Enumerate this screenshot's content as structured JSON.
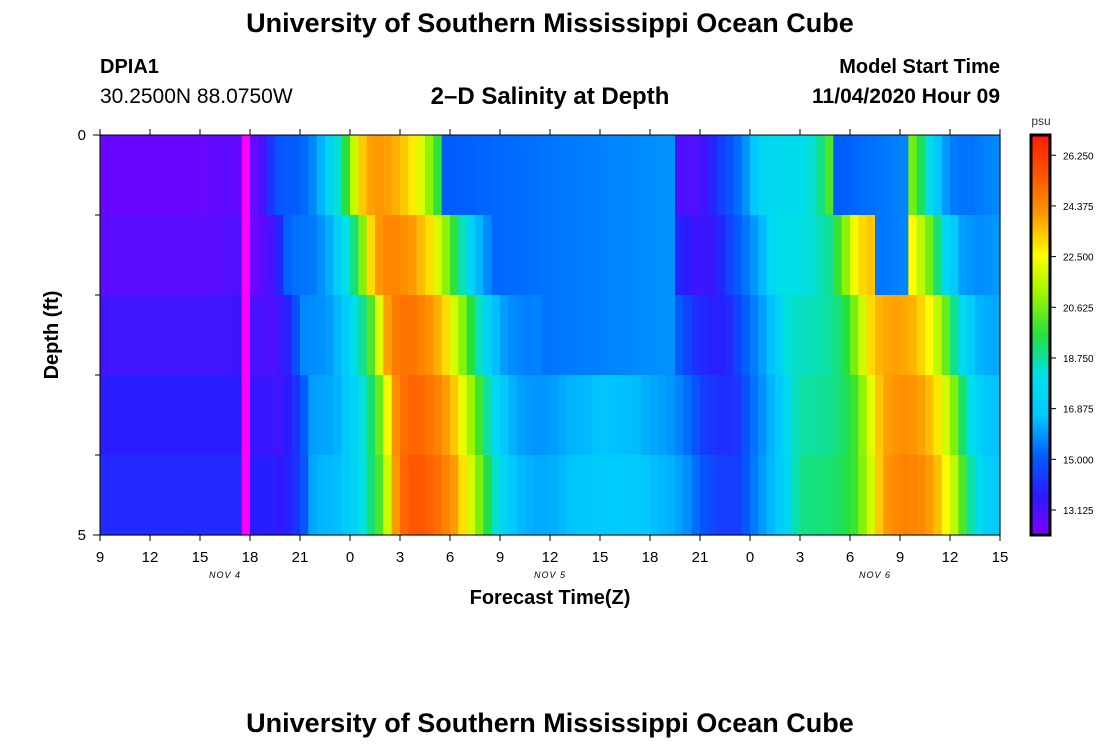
{
  "header": {
    "title": "University of Southern Mississippi Ocean Cube",
    "station_id": "DPIA1",
    "coordinates": "30.2500N 88.0750W",
    "chart_title": "2–D Salinity at Depth",
    "model_start_label": "Model Start Time",
    "model_start_value": "11/04/2020 Hour 09"
  },
  "footer": {
    "title": "University of Southern Mississippi Ocean Cube"
  },
  "colors": {
    "scale": [
      "#7f00ff",
      "#2a1bff",
      "#0060ff",
      "#00c8ff",
      "#00e0e8",
      "#22e040",
      "#9af500",
      "#ffff00",
      "#ff9a00",
      "#ff5500",
      "#ff1a00"
    ],
    "highlight": "#ff00ff"
  },
  "chart_data": {
    "type": "heatmap",
    "title": "2–D Salinity at Depth",
    "xlabel": "Forecast Time(Z)",
    "ylabel": "Depth (ft)",
    "units": "psu",
    "x_ticks": [
      "9",
      "12",
      "15",
      "18",
      "21",
      "0",
      "3",
      "6",
      "9",
      "12",
      "15",
      "18",
      "21",
      "0",
      "3",
      "6",
      "9",
      "12",
      "15"
    ],
    "x_hour_range": [
      0,
      54
    ],
    "date_labels": [
      {
        "label": "NOV 4",
        "hour": 7.5
      },
      {
        "label": "NOV 5",
        "hour": 27
      },
      {
        "label": "NOV 6",
        "hour": 46.5
      }
    ],
    "y_range": [
      0,
      5
    ],
    "y_tick_labels": [
      {
        "depth": 0,
        "label": "0"
      },
      {
        "depth": 5,
        "label": "5"
      }
    ],
    "y_minor_ticks": [
      1,
      2,
      3,
      4
    ],
    "colorbar": {
      "label": "psu",
      "min": 12.2,
      "max": 27.0,
      "ticks": [
        "13.125",
        "15.000",
        "16.875",
        "18.750",
        "20.625",
        "22.500",
        "24.375",
        "26.250"
      ]
    },
    "n_depth_layers": 5,
    "profile_hours": [
      0,
      3,
      6,
      8,
      8.5,
      9.5,
      10,
      10.5,
      11,
      12,
      13,
      14,
      14.5,
      15,
      15.5,
      16,
      16.5,
      17,
      18,
      19,
      20,
      21,
      21.5,
      22,
      22.5,
      23,
      24,
      25,
      26,
      28,
      30,
      31,
      32,
      33,
      34,
      35,
      36,
      37,
      38,
      39,
      39.5,
      40,
      41,
      42,
      43,
      44,
      44.5,
      45,
      46,
      47,
      48,
      49,
      50,
      51,
      52,
      54
    ],
    "profile_values": [
      12.6,
      12.6,
      12.6,
      12.8,
      12.5,
      13.2,
      14.0,
      15.3,
      15.4,
      15.5,
      16.3,
      18.2,
      19.2,
      21.0,
      23.3,
      24.2,
      24.5,
      24.5,
      24.0,
      23.0,
      20.8,
      18.4,
      17.2,
      16.3,
      15.7,
      15.4,
      15.2,
      15.3,
      15.6,
      15.9,
      15.8,
      15.5,
      15.3,
      14.8,
      13.8,
      13.4,
      13.4,
      14.6,
      15.5,
      16.5,
      17.7,
      18.0,
      18.1,
      18.3,
      18.9,
      21.0,
      22.5,
      23.2,
      23.6,
      23.4,
      22.5,
      20.5,
      17.5,
      16.0,
      15.8,
      16.2
    ],
    "fresh_band": {
      "start_hour": 8.5,
      "end_hour": 9.0,
      "value": 11.5
    },
    "depth_lag_hours": [
      0,
      0.8,
      1.6,
      2.1,
      2.3
    ],
    "depth_offset_psu": [
      -0.4,
      0,
      0.4,
      0.7,
      1.0
    ],
    "pre_lens_offset_psu": [
      0.2,
      0.5,
      1.0,
      1.3,
      1.4
    ],
    "pre_lens_taper": [
      0,
      0.5,
      0.7,
      0.85,
      1.0
    ],
    "surface_lenses": [
      {
        "start_hour": 19.5,
        "end_hour": 34.5,
        "layers": [
          0,
          1,
          2
        ],
        "step_hours": [
          20.5,
          23.5,
          26.5
        ],
        "bottom_value": 15.0,
        "top_value": 15.9
      },
      {
        "start_hour": 43.5,
        "end_hour": 48.5,
        "layers": [
          0,
          1
        ],
        "step_hours": [
          44.0,
          46.5
        ],
        "bottom_value": 15.0,
        "top_value": 15.7
      }
    ],
    "column_width_hours": 0.5
  }
}
